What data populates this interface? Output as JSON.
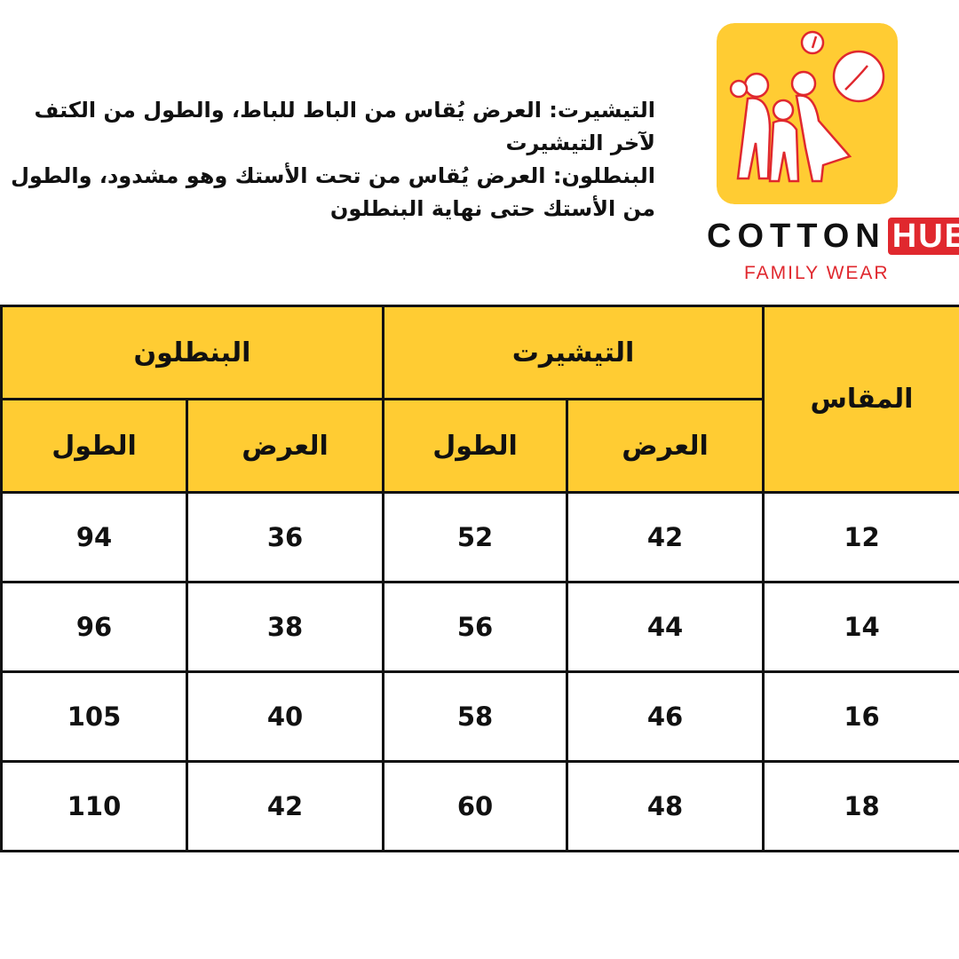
{
  "notes": [
    "التيشيرت: العرض يُقاس من الباط للباط، والطول من الكتف لآخر التيشيرت",
    "البنطلون: العرض يُقاس من تحت الأستك وهو مشدود، والطول من الأستك حتى نهاية البنطلون"
  ],
  "brand": {
    "name_part1": "COTTON",
    "name_part2": "HUB",
    "tagline": "FAMILY WEAR",
    "colors": {
      "yellow": "#ffcc33",
      "red": "#e0282e"
    }
  },
  "table": {
    "header": {
      "size": "المقاس",
      "tshirt": "التيشيرت",
      "pants": "البنطلون",
      "width": "العرض",
      "length": "الطول"
    },
    "rows": [
      {
        "size": "12",
        "tshirt_width": "42",
        "tshirt_length": "52",
        "pants_width": "36",
        "pants_length": "94"
      },
      {
        "size": "14",
        "tshirt_width": "44",
        "tshirt_length": "56",
        "pants_width": "38",
        "pants_length": "96"
      },
      {
        "size": "16",
        "tshirt_width": "46",
        "tshirt_length": "58",
        "pants_width": "40",
        "pants_length": "105"
      },
      {
        "size": "18",
        "tshirt_width": "48",
        "tshirt_length": "60",
        "pants_width": "42",
        "pants_length": "110"
      }
    ]
  }
}
